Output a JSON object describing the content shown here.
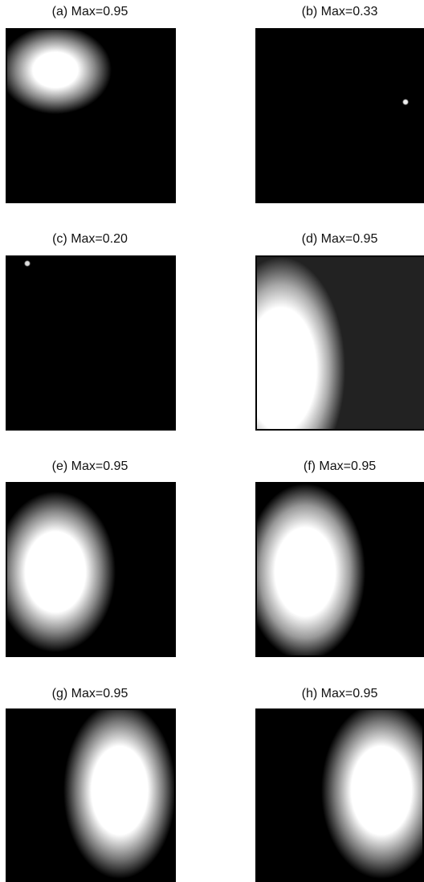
{
  "panels": [
    {
      "caption": "(a) Max=0.95"
    },
    {
      "caption": "(b) Max=0.33"
    },
    {
      "caption": "(c) Max=0.20"
    },
    {
      "caption": "(d) Max=0.95"
    },
    {
      "caption": "(e) Max=0.95"
    },
    {
      "caption": "(f) Max=0.95"
    },
    {
      "caption": "(g) Max=0.95"
    },
    {
      "caption": "(h) Max=0.95"
    }
  ]
}
